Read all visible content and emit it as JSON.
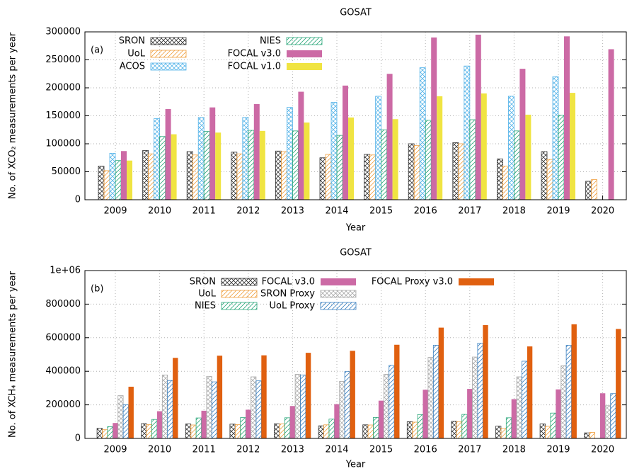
{
  "chart_data": [
    {
      "type": "bar",
      "title": "GOSAT",
      "panel_label": "(a)",
      "x_label": "Year",
      "y_label": "No. of XCO₂ measurements per year",
      "categories": [
        "2009",
        "2010",
        "2011",
        "2012",
        "2013",
        "2014",
        "2015",
        "2016",
        "2017",
        "2018",
        "2019",
        "2020"
      ],
      "ylim": [
        0,
        300000
      ],
      "yticks": [
        0,
        50000,
        100000,
        150000,
        200000,
        250000,
        300000
      ],
      "grid": true,
      "series": [
        {
          "name": "SRON",
          "color": "#333333",
          "pattern": "crosshatch",
          "values": [
            60000,
            88000,
            86000,
            85000,
            87000,
            75000,
            81000,
            100000,
            102000,
            73000,
            86000,
            33000
          ]
        },
        {
          "name": "UoL",
          "color": "#f0a040",
          "pattern": "diagonal",
          "values": [
            52000,
            82000,
            80000,
            82000,
            86000,
            81000,
            80000,
            97000,
            100000,
            60000,
            72000,
            36000
          ]
        },
        {
          "name": "ACOS",
          "color": "#56b4e9",
          "pattern": "crosshatch",
          "values": [
            83000,
            145000,
            147000,
            147000,
            165000,
            174000,
            185000,
            236000,
            239000,
            185000,
            220000,
            null
          ]
        },
        {
          "name": "NIES",
          "color": "#2aa77a",
          "pattern": "diagonal",
          "values": [
            70000,
            113000,
            122000,
            124000,
            123000,
            115000,
            125000,
            142000,
            143000,
            123000,
            151000,
            null
          ]
        },
        {
          "name": "FOCAL v3.0",
          "color": "#cc6aa5",
          "pattern": "solid",
          "values": [
            87000,
            162000,
            165000,
            171000,
            193000,
            204000,
            225000,
            290000,
            295000,
            234000,
            292000,
            269000
          ]
        },
        {
          "name": "FOCAL v1.0",
          "color": "#f0e442",
          "pattern": "solid",
          "values": [
            70000,
            117000,
            120000,
            123000,
            138000,
            147000,
            144000,
            185000,
            190000,
            152000,
            191000,
            null
          ]
        }
      ]
    },
    {
      "type": "bar",
      "title": "GOSAT",
      "panel_label": "(b)",
      "x_label": "Year",
      "y_label": "No. of XCH₄ measurements per year",
      "categories": [
        "2009",
        "2010",
        "2011",
        "2012",
        "2013",
        "2014",
        "2015",
        "2016",
        "2017",
        "2018",
        "2019",
        "2020"
      ],
      "ylim": [
        0,
        1000000
      ],
      "yticks": [
        0,
        200000,
        400000,
        600000,
        800000,
        {
          "value": 1000000,
          "label": "1e+06"
        }
      ],
      "grid": true,
      "series": [
        {
          "name": "SRON",
          "color": "#333333",
          "pattern": "crosshatch",
          "values": [
            60000,
            88000,
            86000,
            85000,
            87000,
            75000,
            81000,
            100000,
            102000,
            73000,
            86000,
            33000
          ]
        },
        {
          "name": "UoL",
          "color": "#f0a040",
          "pattern": "diagonal",
          "values": [
            52000,
            82000,
            80000,
            82000,
            86000,
            81000,
            80000,
            97000,
            100000,
            60000,
            72000,
            36000
          ]
        },
        {
          "name": "NIES",
          "color": "#2aa77a",
          "pattern": "diagonal",
          "values": [
            70000,
            113000,
            122000,
            124000,
            123000,
            115000,
            125000,
            142000,
            143000,
            123000,
            151000,
            null
          ]
        },
        {
          "name": "FOCAL v3.0",
          "color": "#cc6aa5",
          "pattern": "solid",
          "values": [
            92000,
            162000,
            165000,
            171000,
            193000,
            204000,
            225000,
            290000,
            295000,
            234000,
            292000,
            269000
          ]
        },
        {
          "name": "SRON Proxy",
          "color": "#aaaaaa",
          "pattern": "crosshatch",
          "values": [
            255000,
            378000,
            370000,
            367000,
            382000,
            340000,
            382000,
            483000,
            485000,
            367000,
            433000,
            195000
          ]
        },
        {
          "name": "UoL Proxy",
          "color": "#3a80c0",
          "pattern": "diagonal",
          "values": [
            200000,
            345000,
            337000,
            343000,
            378000,
            398000,
            435000,
            555000,
            567000,
            460000,
            555000,
            267000
          ]
        },
        {
          "name": "FOCAL Proxy v3.0",
          "color": "#e06010",
          "pattern": "solid",
          "values": [
            308000,
            480000,
            493000,
            495000,
            510000,
            522000,
            558000,
            660000,
            675000,
            548000,
            680000,
            652000
          ]
        }
      ]
    }
  ]
}
